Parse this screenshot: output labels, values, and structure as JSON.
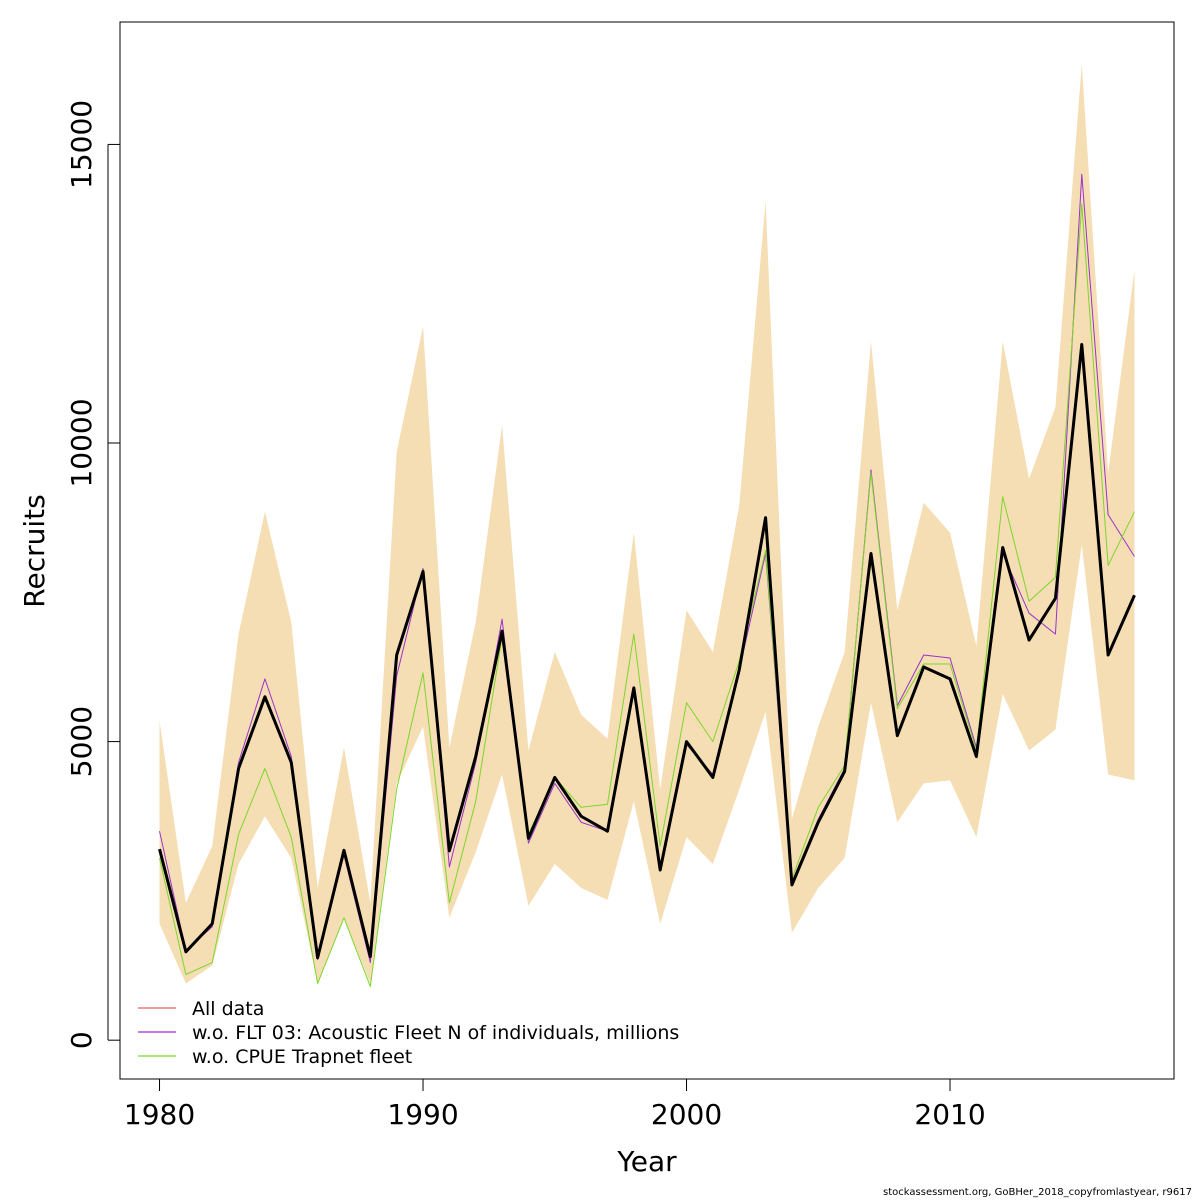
{
  "chart_data": {
    "type": "line",
    "xlabel": "Year",
    "ylabel": "Recruits",
    "xlim": [
      1978.5,
      2018.5
    ],
    "ylim": [
      -650,
      17050
    ],
    "x_ticks": [
      1980,
      1990,
      2000,
      2010
    ],
    "y_ticks": [
      0,
      5000,
      10000,
      15000
    ],
    "x": [
      1980,
      1981,
      1982,
      1983,
      1984,
      1985,
      1986,
      1987,
      1988,
      1989,
      1990,
      1991,
      1992,
      1993,
      1994,
      1995,
      1996,
      1997,
      1998,
      1999,
      2000,
      2001,
      2002,
      2003,
      2004,
      2005,
      2006,
      2007,
      2008,
      2009,
      2010,
      2011,
      2012,
      2013,
      2014,
      2015,
      2016,
      2017
    ],
    "band": {
      "color": "#f5deb3",
      "upper": [
        5350,
        2300,
        3250,
        6800,
        8850,
        7000,
        2550,
        4900,
        2300,
        9850,
        11950,
        4900,
        7000,
        10300,
        4850,
        6500,
        5450,
        5050,
        8500,
        4200,
        7200,
        6500,
        8950,
        14050,
        3700,
        5250,
        6500,
        11700,
        7200,
        9000,
        8500,
        6600,
        11700,
        9400,
        10600,
        16350,
        9500,
        12900
      ],
      "lower": [
        1950,
        950,
        1250,
        2950,
        3750,
        3050,
        950,
        2050,
        950,
        4300,
        5250,
        2050,
        3150,
        4450,
        2250,
        2950,
        2550,
        2350,
        4000,
        1950,
        3400,
        2950,
        4200,
        5500,
        1800,
        2550,
        3050,
        5650,
        3650,
        4300,
        4350,
        3400,
        5800,
        4850,
        5200,
        8300,
        4450,
        4350
      ]
    },
    "series": [
      {
        "name": "All data",
        "color": "#e06060",
        "width": 1,
        "values": [
          3200,
          1480,
          1950,
          4550,
          5750,
          4650,
          1380,
          3180,
          1400,
          6450,
          7850,
          3170,
          4750,
          6850,
          3380,
          4400,
          3750,
          3500,
          5900,
          2850,
          5000,
          4400,
          6200,
          8750,
          2600,
          3650,
          4500,
          8150,
          5100,
          6250,
          6050,
          4750,
          8250,
          6700,
          7400,
          11650,
          6450,
          7450
        ]
      },
      {
        "name": "w.o. FLT 03: Acoustic Fleet   N of individuals, millions",
        "color": "#9932cc",
        "width": 1,
        "values": [
          3500,
          1500,
          1900,
          4650,
          6050,
          4750,
          1350,
          3100,
          1300,
          6100,
          7900,
          2900,
          4650,
          7050,
          3300,
          4300,
          3650,
          3500,
          5850,
          2900,
          4950,
          4450,
          6200,
          8150,
          2650,
          3700,
          4550,
          9550,
          5600,
          6450,
          6400,
          4900,
          8150,
          7150,
          6800,
          14500,
          8800,
          8100
        ]
      },
      {
        "name": "w.o. CPUE Trapnet fleet",
        "color": "#7cd62a",
        "width": 1,
        "values": [
          3050,
          1100,
          1300,
          3450,
          4550,
          3400,
          950,
          2050,
          900,
          4200,
          6150,
          2300,
          4000,
          6750,
          3450,
          4400,
          3900,
          3950,
          6800,
          3250,
          5650,
          5000,
          6350,
          8200,
          2700,
          3900,
          4600,
          9500,
          5550,
          6300,
          6300,
          4850,
          9100,
          7350,
          7750,
          14000,
          7950,
          8850
        ]
      }
    ],
    "main_series": {
      "name": "All data",
      "color": "#000000",
      "width": 3,
      "values": [
        3200,
        1480,
        1950,
        4550,
        5750,
        4650,
        1380,
        3180,
        1400,
        6450,
        7850,
        3170,
        4750,
        6850,
        3380,
        4400,
        3750,
        3500,
        5900,
        2850,
        5000,
        4400,
        6200,
        8750,
        2600,
        3650,
        4500,
        8150,
        5100,
        6250,
        6050,
        4750,
        8250,
        6700,
        7400,
        11650,
        6450,
        7450
      ]
    },
    "legend_position": "bottom-left",
    "grid": false
  },
  "footer": "stockassessment.org, GoBHer_2018_copyfromlastyear, r9617"
}
